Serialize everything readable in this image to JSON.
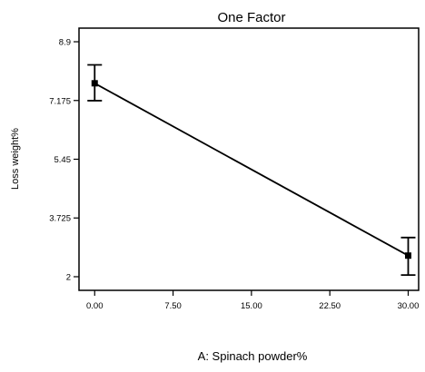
{
  "chart_data": {
    "type": "line",
    "title": "One Factor",
    "xlabel": "A: Spinach powder%",
    "ylabel": "Loss weight%",
    "xlim": [
      -1.5,
      31
    ],
    "ylim": [
      1.6,
      9.3
    ],
    "x_ticks": [
      0,
      7.5,
      15,
      22.5,
      30
    ],
    "x_tick_labels": [
      "0.00",
      "7.50",
      "15.00",
      "22.50",
      "30.00"
    ],
    "y_ticks": [
      2,
      3.725,
      5.45,
      7.175,
      8.9
    ],
    "y_tick_labels": [
      "2",
      "3.725",
      "5.45",
      "7.175",
      "8.9"
    ],
    "grid": false,
    "series": [
      {
        "points": [
          {
            "x": 0,
            "y": 7.68,
            "err_low": 7.17,
            "err_high": 8.22
          },
          {
            "x": 30,
            "y": 2.62,
            "err_low": 2.05,
            "err_high": 3.15
          }
        ]
      }
    ]
  }
}
